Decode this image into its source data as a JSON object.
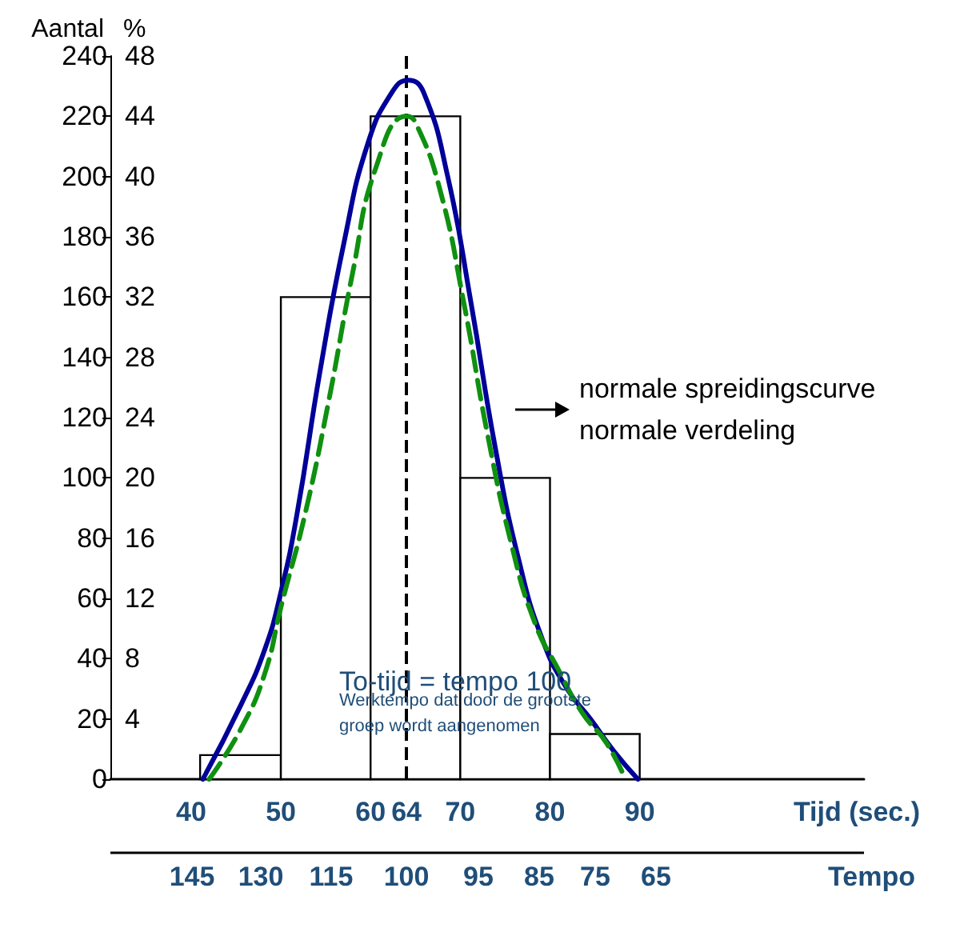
{
  "chart_data": {
    "type": "histogram",
    "xlabel": "Tijd (sec.)",
    "x2label": "Tempo",
    "ylabel": "Aantal",
    "y2label": "%",
    "xlim": [
      31,
      115
    ],
    "xticks": [
      40,
      50,
      60,
      64,
      70,
      80,
      90
    ],
    "ylim": [
      0,
      240
    ],
    "yticks": [
      0,
      20,
      40,
      60,
      80,
      100,
      120,
      140,
      160,
      180,
      200,
      220,
      240
    ],
    "y2lim": [
      0,
      48
    ],
    "y2ticks": [
      4,
      8,
      12,
      16,
      20,
      24,
      28,
      32,
      36,
      40,
      44,
      48
    ],
    "series": [
      {
        "color": "#ffffff",
        "bins": [
          41,
          50,
          60,
          70,
          80,
          90
        ],
        "values": [
          8,
          160,
          220,
          100,
          15
        ]
      },
      {
        "type": "line",
        "color": "#000099",
        "line_style": "solid",
        "x": [
          41.3,
          45.6,
          48.2,
          50,
          51.8,
          54.4,
          57.1,
          59.7,
          62.4,
          64.2,
          65.9,
          68.6,
          71.2,
          73.9,
          76.5,
          79.2,
          81.9,
          84.5,
          87.2,
          89.8
        ],
        "values": [
          0,
          25,
          43,
          62,
          88,
          136,
          179,
          211,
          228,
          232,
          228,
          200,
          158,
          110,
          73,
          46,
          30,
          20,
          9,
          0
        ]
      },
      {
        "type": "line",
        "color": "#109010",
        "line_style": "dashed",
        "x": [
          42,
          45.6,
          48.2,
          50,
          52.7,
          55.3,
          58,
          60.6,
          64,
          65,
          67.7,
          70.4,
          73,
          75.7,
          78.3,
          81,
          83.6,
          86.3,
          88.4
        ],
        "values": [
          0,
          17,
          35,
          57,
          88,
          125,
          168,
          203,
          220,
          218,
          196,
          158,
          115,
          78,
          52,
          36,
          22,
          12,
          0
        ]
      }
    ],
    "ref_lines": [
      {
        "axis": "x",
        "value": 64,
        "color": "#000000",
        "line_style": "dashed"
      }
    ],
    "annotations": [
      "To-tijd = tempo 100",
      "Werktempo dat door de grootste groep wordt aangenomen",
      "normale spreidingscurve",
      "normale verdeling",
      "145",
      "130",
      "115",
      "100",
      "95",
      "85",
      "75",
      "65"
    ],
    "marker": "none",
    "grid": false
  }
}
